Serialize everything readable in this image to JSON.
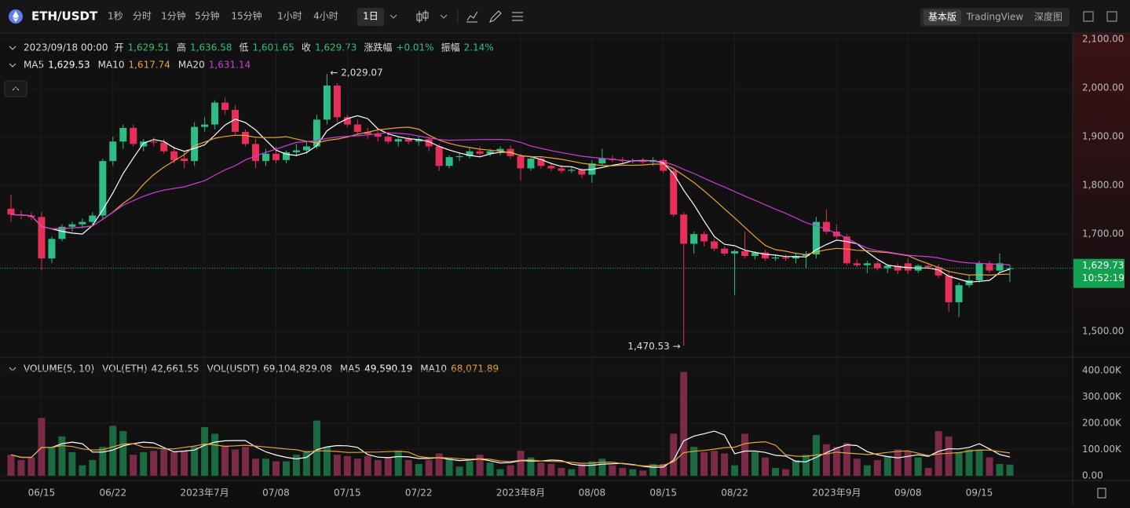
{
  "header": {
    "symbol": "ETH/USDT",
    "intervals": [
      "1秒",
      "分时",
      "1分钟",
      "5分钟",
      "15分钟",
      "1小时",
      "4小时",
      "1日"
    ],
    "active_interval": "1日",
    "views": [
      "基本版",
      "TradingView",
      "深度图"
    ],
    "active_view": "基本版"
  },
  "info": {
    "date": "2023/09/18 00:00",
    "fields": [
      {
        "label": "开",
        "value": "1,629.51"
      },
      {
        "label": "高",
        "value": "1,636.58"
      },
      {
        "label": "低",
        "value": "1,601.65"
      },
      {
        "label": "收",
        "value": "1,629.73"
      },
      {
        "label": "涨跌幅",
        "value": "+0.01%"
      },
      {
        "label": "振幅",
        "value": "2.14%"
      }
    ]
  },
  "ma_legend": [
    {
      "name": "MA5",
      "value": "1,629.53",
      "color": "#ffffff"
    },
    {
      "name": "MA10",
      "value": "1,617.74",
      "color": "#e9a23b"
    },
    {
      "name": "MA20",
      "value": "1,631.14",
      "color": "#cf3bd6"
    }
  ],
  "volume_legend": {
    "title": "VOLUME(5, 10)",
    "fields": [
      {
        "name": "VOL(ETH)",
        "value": "42,661.55",
        "color": "#dddddd"
      },
      {
        "name": "VOL(USDT)",
        "value": "69,104,829.08",
        "color": "#dddddd"
      },
      {
        "name": "MA5",
        "value": "49,590.19",
        "color": "#ffffff"
      },
      {
        "name": "MA10",
        "value": "68,071.89",
        "color": "#e9a23b"
      }
    ]
  },
  "chart_data": {
    "type": "candlestick",
    "categories": [
      null,
      null,
      null,
      "06/15",
      null,
      null,
      null,
      null,
      null,
      null,
      "06/22",
      null,
      null,
      null,
      null,
      null,
      null,
      null,
      null,
      "2023年7月",
      null,
      null,
      null,
      null,
      null,
      null,
      "07/08",
      null,
      null,
      null,
      null,
      null,
      null,
      "07/15",
      null,
      null,
      null,
      null,
      null,
      null,
      "07/22",
      null,
      null,
      null,
      null,
      null,
      null,
      null,
      null,
      null,
      "2023年8月",
      null,
      null,
      null,
      null,
      null,
      null,
      "08/08",
      null,
      null,
      null,
      null,
      null,
      null,
      "08/15",
      null,
      null,
      null,
      null,
      null,
      null,
      "08/22",
      null,
      null,
      null,
      null,
      null,
      null,
      null,
      null,
      null,
      "2023年9月",
      null,
      null,
      null,
      null,
      null,
      null,
      "09/08",
      null,
      null,
      null,
      null,
      null,
      null,
      "09/15",
      null,
      null,
      null
    ],
    "open": [
      1752,
      1740,
      1738,
      1735,
      1650,
      1690,
      1715,
      1720,
      1725,
      1738,
      1850,
      1890,
      1918,
      1880,
      1890,
      1888,
      1870,
      1855,
      1850,
      1920,
      1925,
      1970,
      1955,
      1910,
      1885,
      1850,
      1865,
      1852,
      1868,
      1872,
      1880,
      1935,
      2005,
      1940,
      1925,
      1910,
      1905,
      1900,
      1890,
      1895,
      1890,
      1895,
      1880,
      1840,
      1858,
      1860,
      1870,
      1865,
      1870,
      1875,
      1860,
      1835,
      1855,
      1840,
      1835,
      1830,
      1832,
      1822,
      1845,
      1855,
      1852,
      1850,
      1851,
      1848,
      1852,
      1830,
      1740,
      1680,
      1700,
      1685,
      1670,
      1660,
      1665,
      1655,
      1662,
      1650,
      1652,
      1650,
      1655,
      1658,
      1725,
      1705,
      1695,
      1640,
      1636,
      1640,
      1630,
      1635,
      1640,
      1625,
      1635,
      1632,
      1615,
      1560,
      1595,
      1605,
      1640,
      1625,
      1629.51
    ],
    "high": [
      1780,
      1748,
      1745,
      1745,
      1695,
      1720,
      1725,
      1732,
      1745,
      1855,
      1900,
      1925,
      1925,
      1895,
      1898,
      1895,
      1880,
      1870,
      1930,
      1940,
      1975,
      1980,
      1965,
      1915,
      1895,
      1875,
      1880,
      1872,
      1885,
      1890,
      1945,
      2029.07,
      2010,
      1945,
      1935,
      1918,
      1912,
      1908,
      1900,
      1900,
      1900,
      1900,
      1885,
      1862,
      1868,
      1878,
      1880,
      1875,
      1880,
      1882,
      1865,
      1860,
      1858,
      1848,
      1842,
      1838,
      1835,
      1852,
      1875,
      1862,
      1858,
      1855,
      1856,
      1858,
      1855,
      1835,
      1745,
      1705,
      1705,
      1690,
      1675,
      1668,
      1705,
      1665,
      1668,
      1656,
      1658,
      1662,
      1665,
      1735,
      1750,
      1720,
      1700,
      1648,
      1645,
      1645,
      1638,
      1640,
      1650,
      1638,
      1640,
      1638,
      1625,
      1600,
      1615,
      1645,
      1645,
      1660,
      1636.58
    ],
    "low": [
      1725,
      1730,
      1728,
      1625,
      1640,
      1685,
      1705,
      1712,
      1718,
      1730,
      1840,
      1875,
      1880,
      1870,
      1880,
      1865,
      1845,
      1835,
      1840,
      1910,
      1915,
      1945,
      1905,
      1880,
      1835,
      1840,
      1845,
      1845,
      1860,
      1865,
      1875,
      1925,
      1930,
      1920,
      1905,
      1895,
      1890,
      1885,
      1880,
      1885,
      1882,
      1870,
      1830,
      1835,
      1850,
      1855,
      1858,
      1860,
      1862,
      1855,
      1810,
      1830,
      1835,
      1830,
      1825,
      1825,
      1815,
      1805,
      1840,
      1848,
      1845,
      1845,
      1844,
      1840,
      1825,
      1735,
      1470.53,
      1660,
      1675,
      1665,
      1655,
      1575,
      1650,
      1648,
      1645,
      1645,
      1645,
      1640,
      1630,
      1650,
      1700,
      1690,
      1635,
      1632,
      1620,
      1625,
      1620,
      1618,
      1618,
      1620,
      1628,
      1610,
      1540,
      1530,
      1590,
      1600,
      1620,
      1622,
      1601.65
    ],
    "close": [
      1740,
      1738,
      1735,
      1650,
      1690,
      1715,
      1720,
      1725,
      1738,
      1850,
      1890,
      1918,
      1885,
      1890,
      1888,
      1870,
      1852,
      1850,
      1920,
      1925,
      1970,
      1955,
      1910,
      1885,
      1850,
      1865,
      1852,
      1868,
      1872,
      1880,
      1935,
      2005,
      1940,
      1925,
      1910,
      1905,
      1900,
      1890,
      1895,
      1890,
      1895,
      1880,
      1840,
      1858,
      1860,
      1870,
      1865,
      1870,
      1875,
      1860,
      1835,
      1855,
      1840,
      1835,
      1830,
      1832,
      1822,
      1845,
      1855,
      1852,
      1850,
      1851,
      1848,
      1852,
      1830,
      1740,
      1680,
      1700,
      1685,
      1670,
      1660,
      1665,
      1655,
      1662,
      1650,
      1652,
      1650,
      1655,
      1658,
      1725,
      1705,
      1695,
      1640,
      1636,
      1640,
      1630,
      1635,
      1625,
      1625,
      1635,
      1632,
      1615,
      1560,
      1595,
      1605,
      1640,
      1625,
      1640,
      1629.73
    ],
    "volume": [
      80,
      60,
      70,
      220,
      110,
      150,
      90,
      40,
      60,
      110,
      190,
      170,
      80,
      90,
      95,
      100,
      90,
      95,
      110,
      185,
      160,
      115,
      100,
      110,
      65,
      65,
      55,
      55,
      80,
      95,
      210,
      110,
      80,
      75,
      65,
      75,
      60,
      70,
      95,
      60,
      45,
      60,
      85,
      65,
      35,
      55,
      80,
      50,
      25,
      40,
      95,
      70,
      50,
      45,
      30,
      25,
      45,
      55,
      65,
      40,
      30,
      25,
      20,
      45,
      45,
      160,
      395,
      110,
      90,
      95,
      85,
      40,
      160,
      90,
      70,
      30,
      25,
      60,
      80,
      155,
      120,
      110,
      125,
      65,
      40,
      60,
      75,
      100,
      95,
      70,
      30,
      170,
      150,
      90,
      100,
      100,
      70,
      45,
      42.66
    ],
    "up_color": "#2ebd85",
    "down_color": "#e6305a",
    "up_volume_color": "#1c6b40",
    "down_volume_color": "#7b2a47",
    "ylim": [
      1447,
      2113
    ],
    "yticks": [
      {
        "value": 1500,
        "label": "1,500.00"
      },
      {
        "value": 1700,
        "label": "1,700.00"
      },
      {
        "value": 1800,
        "label": "1,800.00"
      },
      {
        "value": 1900,
        "label": "1,900.00"
      },
      {
        "value": 2000,
        "label": "2,000.00"
      },
      {
        "value": 2100,
        "label": "2,100.00"
      }
    ],
    "vlim": [
      -18,
      436
    ],
    "vticks": [
      {
        "value": 0,
        "label": "0.00"
      },
      {
        "value": 100,
        "label": "100.00K"
      },
      {
        "value": 200,
        "label": "200.00K"
      },
      {
        "value": 300,
        "label": "300.00K"
      },
      {
        "value": 400,
        "label": "400.00K"
      }
    ],
    "last_price": {
      "value": 1629.73,
      "label": "1,629.73",
      "time": "10:52:19"
    },
    "annotations": [
      {
        "value": 2029.07,
        "label": "← 2,029.07"
      },
      {
        "value": 1470.53,
        "label": "1,470.53 →"
      }
    ],
    "grid": true
  }
}
